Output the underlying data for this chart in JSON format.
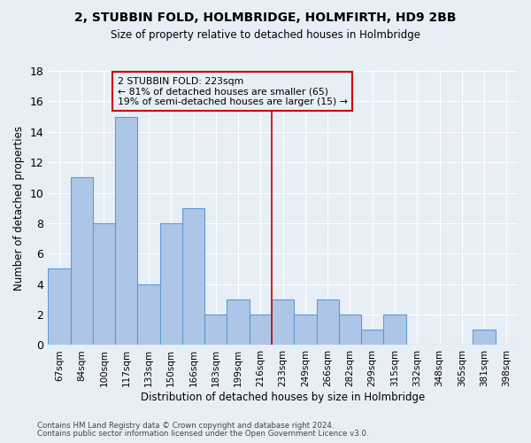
{
  "title1": "2, STUBBIN FOLD, HOLMBRIDGE, HOLMFIRTH, HD9 2BB",
  "title2": "Size of property relative to detached houses in Holmbridge",
  "xlabel": "Distribution of detached houses by size in Holmbridge",
  "ylabel": "Number of detached properties",
  "bar_labels": [
    "67sqm",
    "84sqm",
    "100sqm",
    "117sqm",
    "133sqm",
    "150sqm",
    "166sqm",
    "183sqm",
    "199sqm",
    "216sqm",
    "233sqm",
    "249sqm",
    "266sqm",
    "282sqm",
    "299sqm",
    "315sqm",
    "332sqm",
    "348sqm",
    "365sqm",
    "381sqm",
    "398sqm"
  ],
  "bar_values": [
    5,
    11,
    8,
    15,
    4,
    8,
    9,
    2,
    3,
    2,
    3,
    2,
    3,
    2,
    1,
    2,
    0,
    0,
    0,
    1,
    0
  ],
  "bar_color": "#adc6e8",
  "bar_edge_color": "#5b9bd5",
  "annotation_text": "2 STUBBIN FOLD: 223sqm\n← 81% of detached houses are smaller (65)\n19% of semi-detached houses are larger (15) →",
  "vline_x": 9.5,
  "ylim": [
    0,
    18
  ],
  "yticks": [
    0,
    2,
    4,
    6,
    8,
    10,
    12,
    14,
    16,
    18
  ],
  "footer1": "Contains HM Land Registry data © Crown copyright and database right 2024.",
  "footer2": "Contains public sector information licensed under the Open Government Licence v3.0.",
  "bg_color": "#e8eef5",
  "grid_color": "#ffffff",
  "annotation_rect_color": "#cc0000",
  "vline_color": "#cc0000"
}
